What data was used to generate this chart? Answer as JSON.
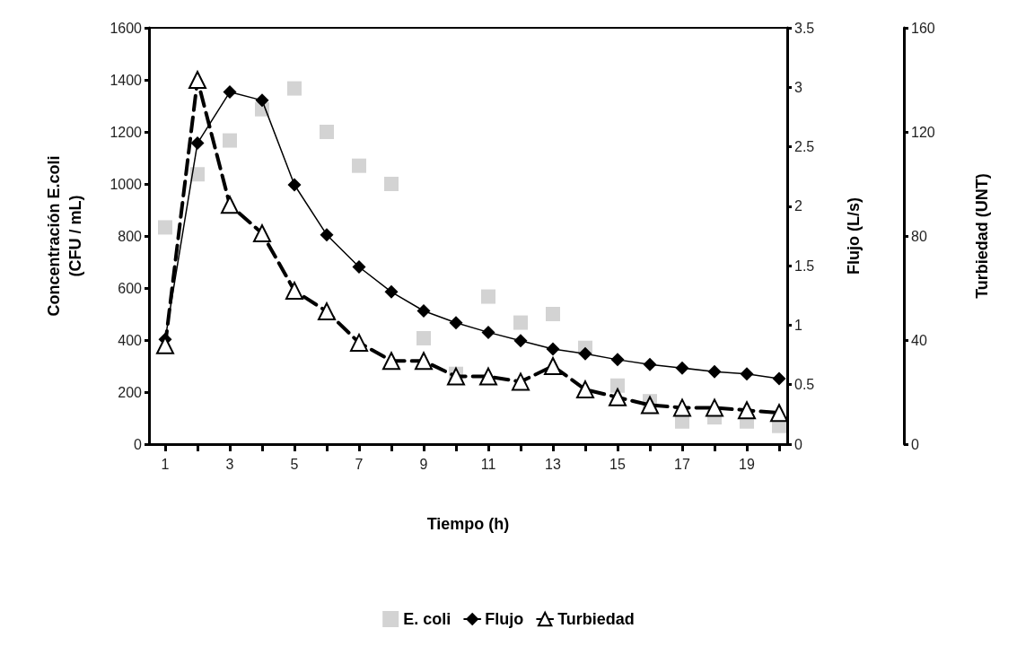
{
  "chart_data": {
    "type": "line",
    "xlabel": "Tiempo (h)",
    "ylabel": "Concentración E.coli (CFU / mL)",
    "y2label": "Flujo (L/s)",
    "y3label": "Turbiedad (UNT)",
    "x": [
      1,
      2,
      3,
      4,
      5,
      6,
      7,
      8,
      9,
      10,
      11,
      12,
      13,
      14,
      15,
      16,
      17,
      18,
      19,
      20
    ],
    "xlim": [
      0.5,
      20.25
    ],
    "xticks": [
      1,
      {
        "value": 2,
        "label": null
      },
      3,
      {
        "value": 4,
        "label": null
      },
      5,
      {
        "value": 6,
        "label": null
      },
      7,
      {
        "value": 8,
        "label": null
      },
      9,
      {
        "value": 10,
        "label": null
      },
      11,
      {
        "value": 12,
        "label": null
      },
      13,
      {
        "value": 14,
        "label": null
      },
      15,
      {
        "value": 16,
        "label": null
      },
      17,
      {
        "value": 18,
        "label": null
      },
      19,
      {
        "value": 20,
        "label": null
      }
    ],
    "ylim": [
      0,
      1600
    ],
    "yticks": [
      0,
      200,
      400,
      600,
      800,
      1000,
      1200,
      1400,
      1600
    ],
    "y2lim": [
      0,
      3.5
    ],
    "y2ticks": [
      0,
      0.5,
      1,
      1.5,
      2,
      2.5,
      3,
      3.5
    ],
    "y3lim": [
      0,
      160
    ],
    "y3ticks": [
      0,
      40,
      80,
      120,
      160
    ],
    "grid": false,
    "legend": "bottom",
    "series": [
      {
        "name": "E. coli",
        "type": "scatter",
        "marker": "square",
        "color": "#c8c8c8",
        "values": [
          833,
          1037,
          1167,
          1287,
          1367,
          1200,
          1070,
          1000,
          407,
          270,
          567,
          467,
          500,
          370,
          225,
          165,
          87,
          103,
          87,
          70
        ]
      },
      {
        "name": "Flujo",
        "axis": "y2",
        "marker": "diamond",
        "line_style": "solid",
        "color": "#000000",
        "values": [
          0.88,
          2.53,
          2.96,
          2.89,
          2.18,
          1.76,
          1.49,
          1.28,
          1.12,
          1.02,
          0.94,
          0.87,
          0.8,
          0.76,
          0.71,
          0.67,
          0.64,
          0.61,
          0.59,
          0.55
        ]
      },
      {
        "name": "Turbiedad",
        "axis": "y3",
        "marker": "triangle",
        "line_style": "dashed",
        "color": "#000000",
        "values": [
          38,
          140,
          92,
          81,
          59,
          51,
          39,
          32,
          32,
          26,
          26,
          24,
          30,
          21,
          18,
          15,
          14,
          14,
          13,
          12
        ]
      }
    ]
  }
}
